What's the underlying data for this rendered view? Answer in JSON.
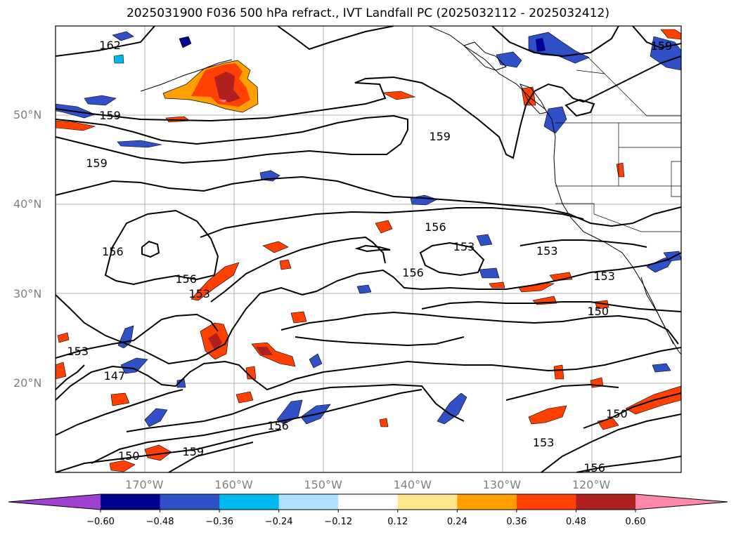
{
  "title": "2025031900 F036 500 hPa refract., IVT Landfall PC (2025032112 - 2025032412)",
  "map": {
    "projection": "PlateCarree",
    "lon_range": [
      -180,
      -110
    ],
    "lat_range": [
      10,
      60
    ],
    "gridlines": true,
    "lat_ticks": [
      {
        "value": 20,
        "label": "20°N"
      },
      {
        "value": 30,
        "label": "30°N"
      },
      {
        "value": 40,
        "label": "40°N"
      },
      {
        "value": 50,
        "label": "50°N"
      }
    ],
    "lon_ticks": [
      {
        "value": -170,
        "label": "170°W"
      },
      {
        "value": -160,
        "label": "160°W"
      },
      {
        "value": -150,
        "label": "150°W"
      },
      {
        "value": -140,
        "label": "140°W"
      },
      {
        "value": -130,
        "label": "130°W"
      },
      {
        "value": -120,
        "label": "120°W"
      }
    ],
    "contour_labels": [
      {
        "text": "162",
        "lon": -174.0,
        "lat": 57.8
      },
      {
        "text": "159",
        "lon": -174.0,
        "lat": 49.9
      },
      {
        "text": "159",
        "lon": -175.5,
        "lat": 44.6
      },
      {
        "text": "159",
        "lon": -137.1,
        "lat": 47.6
      },
      {
        "text": "159",
        "lon": -112.3,
        "lat": 57.7
      },
      {
        "text": "156",
        "lon": -137.6,
        "lat": 37.4
      },
      {
        "text": "153",
        "lon": -134.4,
        "lat": 35.2
      },
      {
        "text": "153",
        "lon": -125.1,
        "lat": 34.8
      },
      {
        "text": "153",
        "lon": -118.7,
        "lat": 31.9
      },
      {
        "text": "156",
        "lon": -140.1,
        "lat": 32.3
      },
      {
        "text": "156",
        "lon": -173.7,
        "lat": 34.7
      },
      {
        "text": "156",
        "lon": -165.5,
        "lat": 31.6
      },
      {
        "text": "153",
        "lon": -164.0,
        "lat": 30.0
      },
      {
        "text": "150",
        "lon": -119.4,
        "lat": 28.0
      },
      {
        "text": "153",
        "lon": -177.6,
        "lat": 23.5
      },
      {
        "text": "147",
        "lon": -173.5,
        "lat": 20.8
      },
      {
        "text": "156",
        "lon": -155.2,
        "lat": 15.2
      },
      {
        "text": "159",
        "lon": -164.7,
        "lat": 12.3
      },
      {
        "text": "150",
        "lon": -171.9,
        "lat": 11.8
      },
      {
        "text": "153",
        "lon": -125.5,
        "lat": 13.3
      },
      {
        "text": "150",
        "lon": -117.3,
        "lat": 16.5
      },
      {
        "text": "156",
        "lon": -119.8,
        "lat": 10.5
      }
    ]
  },
  "colorbar": {
    "ticks": [
      "−0.60",
      "−0.48",
      "−0.36",
      "−0.24",
      "−0.12",
      "0.12",
      "0.24",
      "0.36",
      "0.48",
      "0.60"
    ],
    "colors": [
      "#a040d0",
      "#000090",
      "#3050c8",
      "#00b8f0",
      "#b0e0ff",
      "#ffffff",
      "#ffe88c",
      "#ffa000",
      "#ff4000",
      "#b02020",
      "#ff88aa"
    ]
  },
  "shading_colors": {
    "neg_light": "#b0e0ff",
    "neg_mid": "#00b8f0",
    "neg_strong": "#3050c8",
    "neg_max": "#000090",
    "pos_light": "#ffe88c",
    "pos_mid": "#ffa000",
    "pos_strong": "#ff4000",
    "pos_max": "#b02020",
    "pos_extreme": "#ff88aa"
  }
}
